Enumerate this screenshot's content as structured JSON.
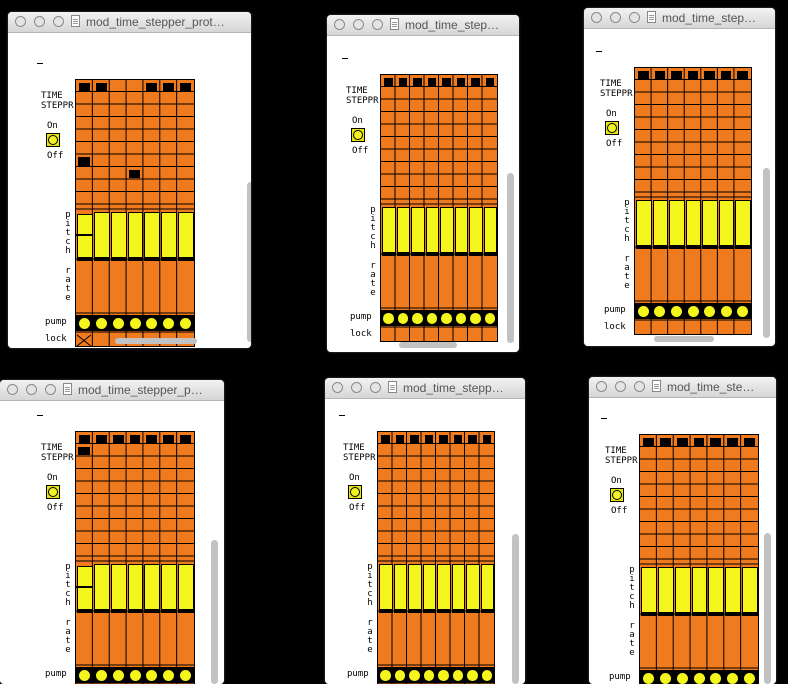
{
  "windows": [
    {
      "title": "mod_time_stepper_prot…",
      "step_toggles": [
        1,
        1,
        0,
        0,
        1,
        1,
        1
      ],
      "marks": [
        [
          1,
          6
        ],
        [
          4,
          7
        ]
      ],
      "pitch_offset": 2,
      "lock_x": true
    },
    {
      "title": "mod_time_step…",
      "step_toggles": [
        1,
        1,
        1,
        1,
        1,
        1,
        1,
        1
      ],
      "marks": [],
      "pitch_offset": 0,
      "lock_x": false
    },
    {
      "title": "mod_time_step…",
      "step_toggles": [
        1,
        1,
        1,
        1,
        1,
        1,
        1
      ],
      "marks": [],
      "pitch_offset": 0,
      "lock_x": false
    },
    {
      "title": "mod_time_stepper_p…",
      "step_toggles": [
        1,
        1,
        1,
        1,
        1,
        1,
        1
      ],
      "marks": [
        [
          1,
          1
        ]
      ],
      "pitch_offset": 2,
      "lock_x": false
    },
    {
      "title": "mod_time_stepp…",
      "step_toggles": [
        1,
        1,
        1,
        1,
        1,
        1,
        1,
        1
      ],
      "marks": [],
      "pitch_offset": 0,
      "lock_x": false
    },
    {
      "title": "mod_time_ste…",
      "step_toggles": [
        1,
        1,
        1,
        1,
        1,
        1,
        1
      ],
      "marks": [],
      "pitch_offset": 0,
      "lock_x": false
    }
  ],
  "labels": {
    "time": "TIME",
    "stepper": "STEPPR",
    "on": "On",
    "off": "Off",
    "pitch": "pitch",
    "rate": "rate",
    "pump": "pump",
    "lock": "lock"
  },
  "colors": {
    "orange": "#f07a1e",
    "yellow": "#f5f51e",
    "background": "#000000"
  }
}
